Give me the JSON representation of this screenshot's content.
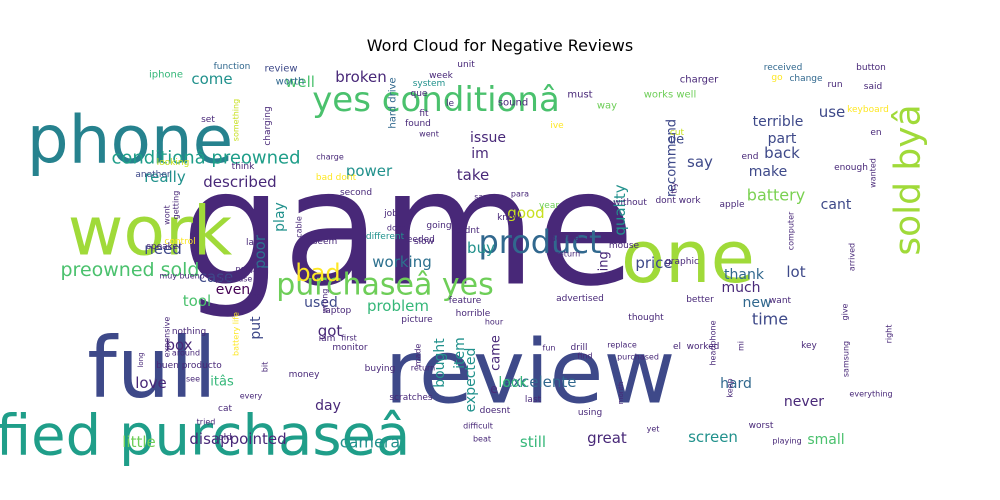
{
  "chart_data": {
    "type": "wordcloud",
    "title": "Word Cloud for Negative Reviews",
    "palette": [
      "#440154",
      "#472d7b",
      "#3b528b",
      "#2c728e",
      "#21918c",
      "#28ae80",
      "#5ec962",
      "#addc30",
      "#fde725"
    ],
    "words": [
      {
        "text": "game",
        "weight": 100,
        "color": "#482878"
      },
      {
        "text": "review",
        "weight": 85,
        "color": "#3e4989"
      },
      {
        "text": "full",
        "weight": 80,
        "color": "#3e4989"
      },
      {
        "text": "phone",
        "weight": 62,
        "color": "#26828e"
      },
      {
        "text": "verified purchaseâ",
        "weight": 58,
        "color": "#1f9e89"
      },
      {
        "text": "work",
        "weight": 60,
        "color": "#a0da39"
      },
      {
        "text": "one",
        "weight": 62,
        "color": "#a0da39"
      },
      {
        "text": "yes conditionâ",
        "weight": 34,
        "color": "#4ac16d"
      },
      {
        "text": "sold byâ",
        "weight": 34,
        "color": "#a0da39"
      },
      {
        "text": "product",
        "weight": 28,
        "color": "#31688e"
      },
      {
        "text": "purchaseâ yes",
        "weight": 28,
        "color": "#6ece58"
      },
      {
        "text": "conditionâ preowned",
        "weight": 20,
        "color": "#1f9e89"
      },
      {
        "text": "preowned sold",
        "weight": 20,
        "color": "#4ac16d"
      },
      {
        "text": "bad",
        "weight": 20,
        "color": "#fde725"
      },
      {
        "text": "battery",
        "weight": 16,
        "color": "#7ad151"
      },
      {
        "text": "camera",
        "weight": 16,
        "color": "#21918c"
      },
      {
        "text": "disappointed",
        "weight": 15,
        "color": "#482878"
      },
      {
        "text": "screen",
        "weight": 15,
        "color": "#21918c"
      },
      {
        "text": "excelente",
        "weight": 15,
        "color": "#31688e"
      },
      {
        "text": "working",
        "weight": 15,
        "color": "#2d708e"
      },
      {
        "text": "problem",
        "weight": 15,
        "color": "#35b779"
      },
      {
        "text": "time",
        "weight": 15,
        "color": "#3e4989"
      },
      {
        "text": "little",
        "weight": 14,
        "color": "#6ece58"
      },
      {
        "text": "great",
        "weight": 14,
        "color": "#482878"
      },
      {
        "text": "still",
        "weight": 14,
        "color": "#35b779"
      },
      {
        "text": "back",
        "weight": 14,
        "color": "#3e4989"
      },
      {
        "text": "make",
        "weight": 14,
        "color": "#3e4989"
      },
      {
        "text": "use",
        "weight": 14,
        "color": "#3e4989"
      },
      {
        "text": "terrible",
        "weight": 14,
        "color": "#3e4989"
      },
      {
        "text": "cant",
        "weight": 14,
        "color": "#3e4989"
      },
      {
        "text": "part",
        "weight": 13,
        "color": "#3e4989"
      },
      {
        "text": "say",
        "weight": 13,
        "color": "#3e4989"
      },
      {
        "text": "recommend",
        "weight": 13,
        "color": "#3e4989"
      },
      {
        "text": "quality",
        "weight": 13,
        "color": "#21918c"
      },
      {
        "text": "good",
        "weight": 14,
        "color": "#c8e020"
      },
      {
        "text": "take",
        "weight": 13,
        "color": "#482878"
      },
      {
        "text": "im",
        "weight": 13,
        "color": "#482878"
      },
      {
        "text": "issue",
        "weight": 13,
        "color": "#482878"
      },
      {
        "text": "well",
        "weight": 13,
        "color": "#4ac16d"
      },
      {
        "text": "come",
        "weight": 13,
        "color": "#21918c"
      },
      {
        "text": "broken",
        "weight": 13,
        "color": "#482878"
      },
      {
        "text": "power",
        "weight": 13,
        "color": "#21918c"
      },
      {
        "text": "described",
        "weight": 13,
        "color": "#482878"
      },
      {
        "text": "really",
        "weight": 13,
        "color": "#21918c"
      },
      {
        "text": "play",
        "weight": 13,
        "color": "#21918c"
      },
      {
        "text": "buy",
        "weight": 13,
        "color": "#21918c"
      },
      {
        "text": "price",
        "weight": 13,
        "color": "#3e4989"
      },
      {
        "text": "lot",
        "weight": 13,
        "color": "#3e4989"
      },
      {
        "text": "thank",
        "weight": 13,
        "color": "#31688e"
      },
      {
        "text": "much",
        "weight": 13,
        "color": "#482878"
      },
      {
        "text": "new",
        "weight": 13,
        "color": "#31688e"
      },
      {
        "text": "need",
        "weight": 13,
        "color": "#3e4989"
      },
      {
        "text": "poor",
        "weight": 13,
        "color": "#2d708e"
      },
      {
        "text": "case",
        "weight": 13,
        "color": "#3e4989"
      },
      {
        "text": "even",
        "weight": 13,
        "color": "#440154"
      },
      {
        "text": "tool",
        "weight": 13,
        "color": "#4ac16d"
      },
      {
        "text": "put",
        "weight": 13,
        "color": "#3e4989"
      },
      {
        "text": "used",
        "weight": 13,
        "color": "#3e4989"
      },
      {
        "text": "got",
        "weight": 13,
        "color": "#482878"
      },
      {
        "text": "item",
        "weight": 13,
        "color": "#21918c"
      },
      {
        "text": "bought",
        "weight": 13,
        "color": "#21918c"
      },
      {
        "text": "expected",
        "weight": 12,
        "color": "#21918c"
      },
      {
        "text": "box",
        "weight": 13,
        "color": "#482878"
      },
      {
        "text": "love",
        "weight": 13,
        "color": "#482878"
      },
      {
        "text": "itâs",
        "weight": 12,
        "color": "#35b779"
      },
      {
        "text": "day",
        "weight": 13,
        "color": "#482878"
      },
      {
        "text": "look",
        "weight": 13,
        "color": "#35b779"
      },
      {
        "text": "hard",
        "weight": 13,
        "color": "#31688e"
      },
      {
        "text": "never",
        "weight": 13,
        "color": "#482878"
      },
      {
        "text": "came",
        "weight": 12,
        "color": "#482878"
      },
      {
        "text": "thing",
        "weight": 12,
        "color": "#482878"
      },
      {
        "text": "de",
        "weight": 12,
        "color": "#3e4989"
      },
      {
        "text": "e",
        "weight": 12,
        "color": "#482878"
      },
      {
        "text": "small",
        "weight": 12,
        "color": "#4ac16d"
      },
      {
        "text": "hard drive",
        "weight": 9,
        "color": "#31688e"
      },
      {
        "text": "charger",
        "weight": 9,
        "color": "#482878"
      },
      {
        "text": "works well",
        "weight": 9,
        "color": "#6ece58"
      },
      {
        "text": "sound",
        "weight": 9,
        "color": "#482878"
      },
      {
        "text": "must",
        "weight": 9,
        "color": "#482878"
      },
      {
        "text": "way",
        "weight": 9,
        "color": "#6ece58"
      },
      {
        "text": "worth",
        "weight": 9,
        "color": "#31688e"
      },
      {
        "text": "review",
        "weight": 9,
        "color": "#3e4989"
      },
      {
        "text": "iphone",
        "weight": 9,
        "color": "#35b779"
      },
      {
        "text": "function",
        "weight": 8,
        "color": "#31688e"
      },
      {
        "text": "week",
        "weight": 8,
        "color": "#482878"
      },
      {
        "text": "unit",
        "weight": 8,
        "color": "#482878"
      },
      {
        "text": "system",
        "weight": 8,
        "color": "#21918c"
      },
      {
        "text": "que",
        "weight": 8,
        "color": "#482878"
      },
      {
        "text": "found",
        "weight": 8,
        "color": "#482878"
      },
      {
        "text": "fit",
        "weight": 8,
        "color": "#482878"
      },
      {
        "text": "went",
        "weight": 8,
        "color": "#482878"
      },
      {
        "text": "ive",
        "weight": 8,
        "color": "#fde725"
      },
      {
        "text": "cut",
        "weight": 8,
        "color": "#c8e020"
      },
      {
        "text": "end",
        "weight": 8,
        "color": "#482878"
      },
      {
        "text": "received",
        "weight": 9,
        "color": "#31688e"
      },
      {
        "text": "button",
        "weight": 9,
        "color": "#482878"
      },
      {
        "text": "go",
        "weight": 8,
        "color": "#fde725"
      },
      {
        "text": "change",
        "weight": 8,
        "color": "#31688e"
      },
      {
        "text": "run",
        "weight": 8,
        "color": "#482878"
      },
      {
        "text": "said",
        "weight": 8,
        "color": "#482878"
      },
      {
        "text": "keyboard",
        "weight": 8,
        "color": "#fde725"
      },
      {
        "text": "en",
        "weight": 8,
        "color": "#482878"
      },
      {
        "text": "enough",
        "weight": 8,
        "color": "#482878"
      },
      {
        "text": "wanted",
        "weight": 8,
        "color": "#482878"
      },
      {
        "text": "set",
        "weight": 8,
        "color": "#482878"
      },
      {
        "text": "charging",
        "weight": 7,
        "color": "#482878"
      },
      {
        "text": "something",
        "weight": 6,
        "color": "#c8e020"
      },
      {
        "text": "looking",
        "weight": 6,
        "color": "#c8e020"
      },
      {
        "text": "another",
        "weight": 8,
        "color": "#3e4989"
      },
      {
        "text": "think",
        "weight": 8,
        "color": "#482878"
      },
      {
        "text": "charge",
        "weight": 8,
        "color": "#482878"
      },
      {
        "text": "bad dont",
        "weight": 7,
        "color": "#fde725"
      },
      {
        "text": "second",
        "weight": 8,
        "color": "#482878"
      },
      {
        "text": "saw",
        "weight": 8,
        "color": "#482878"
      },
      {
        "text": "para",
        "weight": 7,
        "color": "#482878"
      },
      {
        "text": "going",
        "weight": 7,
        "color": "#482878"
      },
      {
        "text": "needed",
        "weight": 8,
        "color": "#482878"
      },
      {
        "text": "job",
        "weight": 8,
        "color": "#482878"
      },
      {
        "text": "dont",
        "weight": 8,
        "color": "#482878"
      },
      {
        "text": "know",
        "weight": 7,
        "color": "#482878"
      },
      {
        "text": "year",
        "weight": 8,
        "color": "#6ece58"
      },
      {
        "text": "two",
        "weight": 8,
        "color": "#482878"
      },
      {
        "text": "without",
        "weight": 8,
        "color": "#482878"
      },
      {
        "text": "dont work",
        "weight": 8,
        "color": "#482878"
      },
      {
        "text": "apple",
        "weight": 7,
        "color": "#482878"
      },
      {
        "text": "try",
        "weight": 8,
        "color": "#482878"
      },
      {
        "text": "control",
        "weight": 7,
        "color": "#fde725"
      },
      {
        "text": "getting",
        "weight": 7,
        "color": "#482878"
      },
      {
        "text": "wont",
        "weight": 7,
        "color": "#482878"
      },
      {
        "text": "cable",
        "weight": 8,
        "color": "#482878"
      },
      {
        "text": "la",
        "weight": 8,
        "color": "#482878"
      },
      {
        "text": "speaker",
        "weight": 8,
        "color": "#482878"
      },
      {
        "text": "seem",
        "weight": 8,
        "color": "#482878"
      },
      {
        "text": "different",
        "weight": 8,
        "color": "#21918c"
      },
      {
        "text": "slow",
        "weight": 8,
        "color": "#482878"
      },
      {
        "text": "didnt",
        "weight": 8,
        "color": "#482878"
      },
      {
        "text": "device",
        "weight": 7,
        "color": "#482878"
      },
      {
        "text": "return",
        "weight": 8,
        "color": "#482878"
      },
      {
        "text": "mouse",
        "weight": 8,
        "color": "#482878"
      },
      {
        "text": "graphic",
        "weight": 6,
        "color": "#482878"
      },
      {
        "text": "computer",
        "weight": 7,
        "color": "#482878"
      },
      {
        "text": "arrived",
        "weight": 7,
        "color": "#482878"
      },
      {
        "text": "muy bueno",
        "weight": 7,
        "color": "#482878"
      },
      {
        "text": "people",
        "weight": 7,
        "color": "#482878"
      },
      {
        "text": "purchase",
        "weight": 7,
        "color": "#482878"
      },
      {
        "text": "feel",
        "weight": 6,
        "color": "#482878"
      },
      {
        "text": "wrong",
        "weight": 8,
        "color": "#482878"
      },
      {
        "text": "laptop",
        "weight": 8,
        "color": "#482878"
      },
      {
        "text": "feature",
        "weight": 8,
        "color": "#482878"
      },
      {
        "text": "horrible",
        "weight": 8,
        "color": "#482878"
      },
      {
        "text": "advertised",
        "weight": 8,
        "color": "#482878"
      },
      {
        "text": "better",
        "weight": 8,
        "color": "#482878"
      },
      {
        "text": "want",
        "weight": 7,
        "color": "#482878"
      },
      {
        "text": "give",
        "weight": 8,
        "color": "#482878"
      },
      {
        "text": "nothing",
        "weight": 7,
        "color": "#482878"
      },
      {
        "text": "expensive",
        "weight": 7,
        "color": "#482878"
      },
      {
        "text": "battery life",
        "weight": 7,
        "color": "#fde725"
      },
      {
        "text": "bit",
        "weight": 8,
        "color": "#482878"
      },
      {
        "text": "iam",
        "weight": 7,
        "color": "#482878"
      },
      {
        "text": "first",
        "weight": 8,
        "color": "#482878"
      },
      {
        "text": "monitor",
        "weight": 8,
        "color": "#482878"
      },
      {
        "text": "picture",
        "weight": 7,
        "color": "#482878"
      },
      {
        "text": "made",
        "weight": 7,
        "color": "#482878"
      },
      {
        "text": "return",
        "weight": 7,
        "color": "#482878"
      },
      {
        "text": "hour",
        "weight": 8,
        "color": "#482878"
      },
      {
        "text": "fun",
        "weight": 8,
        "color": "#482878"
      },
      {
        "text": "drill",
        "weight": 7,
        "color": "#482878"
      },
      {
        "text": "thought",
        "weight": 7,
        "color": "#482878"
      },
      {
        "text": "replace",
        "weight": 7,
        "color": "#482878"
      },
      {
        "text": "purchased",
        "weight": 7,
        "color": "#482878"
      },
      {
        "text": "headphone",
        "weight": 7,
        "color": "#482878"
      },
      {
        "text": "mi",
        "weight": 8,
        "color": "#482878"
      },
      {
        "text": "el",
        "weight": 8,
        "color": "#482878"
      },
      {
        "text": "worked",
        "weight": 8,
        "color": "#482878"
      },
      {
        "text": "key",
        "weight": 7,
        "color": "#482878"
      },
      {
        "text": "samsung",
        "weight": 6,
        "color": "#482878"
      },
      {
        "text": "right",
        "weight": 7,
        "color": "#482878"
      },
      {
        "text": "around",
        "weight": 8,
        "color": "#482878"
      },
      {
        "text": "buen producto",
        "weight": 6,
        "color": "#482878"
      },
      {
        "text": "long",
        "weight": 7,
        "color": "#482878"
      },
      {
        "text": "see",
        "weight": 8,
        "color": "#482878"
      },
      {
        "text": "money",
        "weight": 7,
        "color": "#482878"
      },
      {
        "text": "every",
        "weight": 8,
        "color": "#482878"
      },
      {
        "text": "buying",
        "weight": 7,
        "color": "#482878"
      },
      {
        "text": "find",
        "weight": 8,
        "color": "#482878"
      },
      {
        "text": "cat",
        "weight": 7,
        "color": "#482878"
      },
      {
        "text": "tried",
        "weight": 8,
        "color": "#482878"
      },
      {
        "text": "old",
        "weight": 8,
        "color": "#482878"
      },
      {
        "text": "last",
        "weight": 8,
        "color": "#482878"
      },
      {
        "text": "doesnt",
        "weight": 7,
        "color": "#482878"
      },
      {
        "text": "difficult",
        "weight": 7,
        "color": "#482878"
      },
      {
        "text": "beat",
        "weight": 8,
        "color": "#482878"
      },
      {
        "text": "using",
        "weight": 7,
        "color": "#482878"
      },
      {
        "text": "yet",
        "weight": 6,
        "color": "#482878"
      },
      {
        "text": "month",
        "weight": 6,
        "color": "#482878"
      },
      {
        "text": "keep",
        "weight": 8,
        "color": "#482878"
      },
      {
        "text": "worst",
        "weight": 7,
        "color": "#482878"
      },
      {
        "text": "playing",
        "weight": 7,
        "color": "#482878"
      },
      {
        "text": "everything",
        "weight": 8,
        "color": "#482878"
      },
      {
        "text": "scratches",
        "weight": 7,
        "color": "#482878"
      },
      {
        "text": "le",
        "weight": 6,
        "color": "#482878"
      }
    ]
  }
}
